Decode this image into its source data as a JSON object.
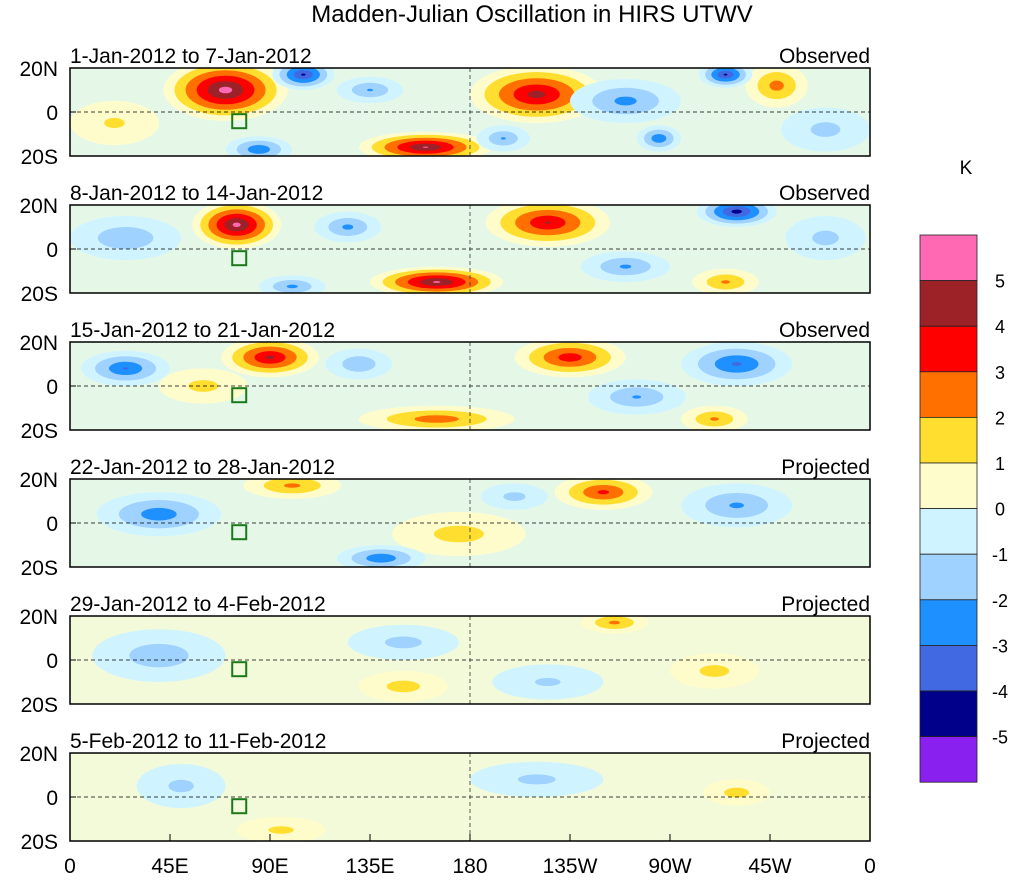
{
  "chart_data": {
    "type": "heatmap",
    "title": "Madden-Julian Oscillation in HIRS UTWV",
    "units": "K",
    "y_tick_labels": [
      "20N",
      "0",
      "20S"
    ],
    "x_tick_labels": [
      "0",
      "45E",
      "90E",
      "135E",
      "180",
      "135W",
      "90W",
      "45W",
      "0"
    ],
    "lon_range": [
      0,
      360
    ],
    "lat_range": [
      -20,
      20
    ],
    "colorbar": {
      "labels": [
        "5",
        "4",
        "3",
        "2",
        "1",
        "0",
        "-1",
        "-2",
        "-3",
        "-4",
        "-5"
      ],
      "colors": [
        "#ff69b4",
        "#9c2228",
        "#ff0000",
        "#ff7000",
        "#ffde30",
        "#fffccc",
        "#d0f4ff",
        "#a0d2ff",
        "#1e90ff",
        "#4169e1",
        "#00008b",
        "#8a20f0"
      ]
    },
    "panels": [
      {
        "period": "1-Jan-2012 to 7-Jan-2012",
        "type": "Observed",
        "anomalies": [
          {
            "lon": 70,
            "lat": 10,
            "value": 5.6,
            "rlon": 28,
            "rlat": 14
          },
          {
            "lon": 160,
            "lat": -16,
            "value": 5.2,
            "rlon": 30,
            "rlat": 7
          },
          {
            "lon": 210,
            "lat": 8,
            "value": 4.6,
            "rlon": 30,
            "rlat": 13
          },
          {
            "lon": 318,
            "lat": 12,
            "value": 2.6,
            "rlon": 14,
            "rlat": 10
          },
          {
            "lon": 20,
            "lat": -5,
            "value": 1.3,
            "rlon": 20,
            "rlat": 10
          },
          {
            "lon": 105,
            "lat": 17,
            "value": -4.3,
            "rlon": 14,
            "rlat": 7
          },
          {
            "lon": 295,
            "lat": 17,
            "value": -4.3,
            "rlon": 12,
            "rlat": 6
          },
          {
            "lon": 250,
            "lat": 5,
            "value": -2.5,
            "rlon": 25,
            "rlat": 10
          },
          {
            "lon": 265,
            "lat": -12,
            "value": -3,
            "rlon": 10,
            "rlat": 6
          },
          {
            "lon": 85,
            "lat": -17,
            "value": -3,
            "rlon": 15,
            "rlat": 6
          },
          {
            "lon": 135,
            "lat": 10,
            "value": -2.2,
            "rlon": 15,
            "rlat": 6
          },
          {
            "lon": 195,
            "lat": -12,
            "value": -2.2,
            "rlon": 12,
            "rlat": 6
          },
          {
            "lon": 340,
            "lat": -8,
            "value": -1.5,
            "rlon": 20,
            "rlat": 10
          }
        ]
      },
      {
        "period": "8-Jan-2012 to 14-Jan-2012",
        "type": "Observed",
        "anomalies": [
          {
            "lon": 75,
            "lat": 11,
            "value": 5.5,
            "rlon": 20,
            "rlat": 11
          },
          {
            "lon": 165,
            "lat": -15,
            "value": 5.3,
            "rlon": 30,
            "rlat": 7
          },
          {
            "lon": 215,
            "lat": 12,
            "value": 4.2,
            "rlon": 28,
            "rlat": 11
          },
          {
            "lon": 295,
            "lat": -15,
            "value": 2.3,
            "rlon": 15,
            "rlat": 6
          },
          {
            "lon": 300,
            "lat": 17,
            "value": -4.6,
            "rlon": 18,
            "rlat": 7
          },
          {
            "lon": 25,
            "lat": 5,
            "value": -2,
            "rlon": 25,
            "rlat": 10
          },
          {
            "lon": 125,
            "lat": 10,
            "value": -2.4,
            "rlon": 15,
            "rlat": 7
          },
          {
            "lon": 100,
            "lat": -17,
            "value": -2.4,
            "rlon": 15,
            "rlat": 5
          },
          {
            "lon": 250,
            "lat": -8,
            "value": -2.3,
            "rlon": 20,
            "rlat": 7
          },
          {
            "lon": 340,
            "lat": 5,
            "value": -1.5,
            "rlon": 18,
            "rlat": 10
          }
        ]
      },
      {
        "period": "15-Jan-2012 to 21-Jan-2012",
        "type": "Observed",
        "anomalies": [
          {
            "lon": 90,
            "lat": 13,
            "value": 4.4,
            "rlon": 22,
            "rlat": 9
          },
          {
            "lon": 225,
            "lat": 13,
            "value": 3.8,
            "rlon": 25,
            "rlat": 9
          },
          {
            "lon": 165,
            "lat": -15,
            "value": 2.8,
            "rlon": 35,
            "rlat": 6
          },
          {
            "lon": 290,
            "lat": -15,
            "value": 2.3,
            "rlon": 15,
            "rlat": 6
          },
          {
            "lon": 60,
            "lat": 0,
            "value": 1.5,
            "rlon": 20,
            "rlat": 8
          },
          {
            "lon": 25,
            "lat": 8,
            "value": -3.2,
            "rlon": 20,
            "rlat": 8
          },
          {
            "lon": 300,
            "lat": 10,
            "value": -3.3,
            "rlon": 25,
            "rlat": 10
          },
          {
            "lon": 130,
            "lat": 10,
            "value": -2,
            "rlon": 15,
            "rlat": 7
          },
          {
            "lon": 255,
            "lat": -5,
            "value": -2.2,
            "rlon": 22,
            "rlat": 8
          }
        ]
      },
      {
        "period": "22-Jan-2012 to 28-Jan-2012",
        "type": "Projected",
        "anomalies": [
          {
            "lon": 240,
            "lat": 14,
            "value": 3.4,
            "rlon": 22,
            "rlat": 8
          },
          {
            "lon": 100,
            "lat": 17,
            "value": 2.4,
            "rlon": 22,
            "rlat": 6
          },
          {
            "lon": 175,
            "lat": -5,
            "value": 1.6,
            "rlon": 30,
            "rlat": 10
          },
          {
            "lon": 40,
            "lat": 4,
            "value": -2.8,
            "rlon": 28,
            "rlat": 10
          },
          {
            "lon": 140,
            "lat": -16,
            "value": -3,
            "rlon": 20,
            "rlat": 6
          },
          {
            "lon": 300,
            "lat": 8,
            "value": -2.3,
            "rlon": 25,
            "rlat": 10
          },
          {
            "lon": 200,
            "lat": 12,
            "value": -1.5,
            "rlon": 15,
            "rlat": 6
          }
        ]
      },
      {
        "period": "29-Jan-2012 to 4-Feb-2012",
        "type": "Projected",
        "anomalies": [
          {
            "lon": 245,
            "lat": 17,
            "value": 2.4,
            "rlon": 15,
            "rlat": 5
          },
          {
            "lon": 150,
            "lat": -12,
            "value": 1.6,
            "rlon": 20,
            "rlat": 7
          },
          {
            "lon": 290,
            "lat": -5,
            "value": 1.5,
            "rlon": 20,
            "rlat": 8
          },
          {
            "lon": 40,
            "lat": 2,
            "value": -1.8,
            "rlon": 30,
            "rlat": 12
          },
          {
            "lon": 150,
            "lat": 8,
            "value": -1.5,
            "rlon": 25,
            "rlat": 8
          },
          {
            "lon": 215,
            "lat": -10,
            "value": -1.3,
            "rlon": 25,
            "rlat": 8
          }
        ]
      },
      {
        "period": "5-Feb-2012 to 11-Feb-2012",
        "type": "Projected",
        "anomalies": [
          {
            "lon": 300,
            "lat": 2,
            "value": 1.6,
            "rlon": 15,
            "rlat": 6
          },
          {
            "lon": 95,
            "lat": -15,
            "value": 1.4,
            "rlon": 20,
            "rlat": 6
          },
          {
            "lon": 50,
            "lat": 5,
            "value": -1.4,
            "rlon": 20,
            "rlat": 10
          },
          {
            "lon": 210,
            "lat": 8,
            "value": -1.4,
            "rlon": 30,
            "rlat": 8
          }
        ]
      }
    ]
  }
}
